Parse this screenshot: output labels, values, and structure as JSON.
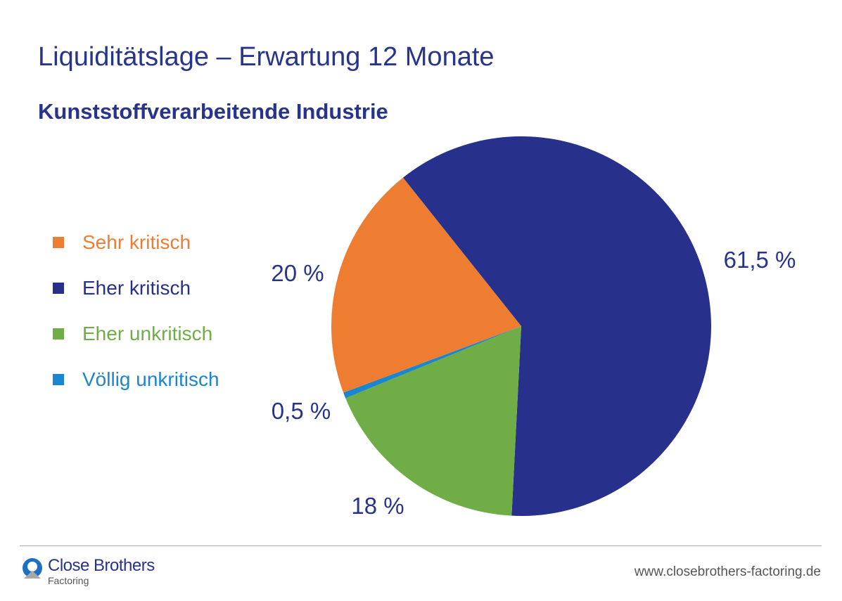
{
  "header": {
    "title": "Liquiditätslage – Erwartung 12 Monate",
    "subtitle": "Kunststoffverarbeitende Industrie"
  },
  "chart_data": {
    "type": "pie",
    "categories": [
      "Sehr kritisch",
      "Eher kritisch",
      "Eher unkritisch",
      "Völlig unkritisch"
    ],
    "values": [
      20,
      61.5,
      18,
      0.5
    ],
    "data_labels": [
      "20 %",
      "61,5 %",
      "18 %",
      "0,5 %"
    ],
    "colors": [
      "#ee7d31",
      "#27308a",
      "#70ad47",
      "#1a86d0"
    ],
    "legend_placement": "left"
  },
  "footer": {
    "brand": "Close Brothers",
    "brand_sub": "Factoring",
    "url": "www.closebrothers-factoring.de"
  }
}
